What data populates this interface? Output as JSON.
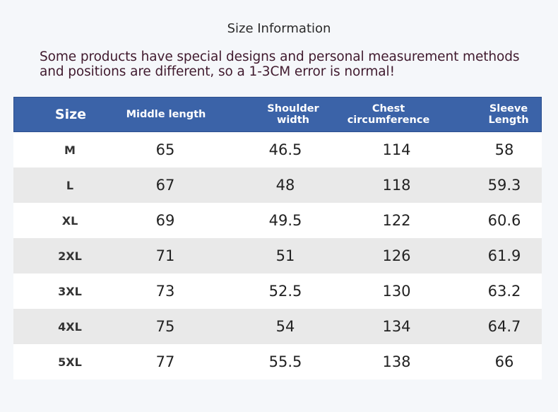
{
  "title": "Size Information",
  "notice": "Some products have special designs and personal measurement methods and positions are different, so a 1-3CM error is normal!",
  "table": {
    "headers": {
      "size": "Size",
      "middle_length": "Middle length",
      "shoulder_width": "Shoulder width",
      "chest": "Chest circumference",
      "sleeve": "Sleeve Length"
    },
    "rows": [
      {
        "size": "M",
        "middle_length": "65",
        "shoulder_width": "46.5",
        "chest": "114",
        "sleeve": "58"
      },
      {
        "size": "L",
        "middle_length": "67",
        "shoulder_width": "48",
        "chest": "118",
        "sleeve": "59.3"
      },
      {
        "size": "XL",
        "middle_length": "69",
        "shoulder_width": "49.5",
        "chest": "122",
        "sleeve": "60.6"
      },
      {
        "size": "2XL",
        "middle_length": "71",
        "shoulder_width": "51",
        "chest": "126",
        "sleeve": "61.9"
      },
      {
        "size": "3XL",
        "middle_length": "73",
        "shoulder_width": "52.5",
        "chest": "130",
        "sleeve": "63.2"
      },
      {
        "size": "4XL",
        "middle_length": "75",
        "shoulder_width": "54",
        "chest": "134",
        "sleeve": "64.7"
      },
      {
        "size": "5XL",
        "middle_length": "77",
        "shoulder_width": "55.5",
        "chest": "138",
        "sleeve": "66"
      }
    ]
  },
  "colors": {
    "header_bg": "#3b63a8",
    "alt_row": "#e9e9e9",
    "notice_text": "#401a2e"
  }
}
